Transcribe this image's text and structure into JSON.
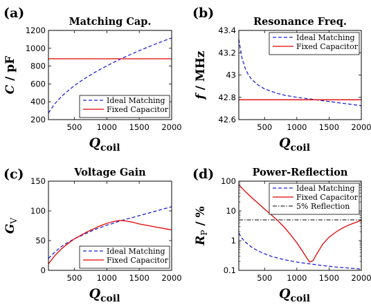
{
  "chart_data": [
    {
      "type": "line",
      "panel_label": "(a)",
      "title": "Matching Cap.",
      "xlabel_main": "Q",
      "xlabel_sub": "coil",
      "ylabel": "C / pF",
      "xlim": [
        100,
        2000
      ],
      "ylim": [
        200,
        1200
      ],
      "yscale": "linear",
      "xticks": [
        500,
        1000,
        1500,
        2000
      ],
      "yticks": [
        200,
        400,
        600,
        800,
        1000,
        1200
      ],
      "legend_position": "bottom-right",
      "series": [
        {
          "name": "Ideal Matching",
          "color": "#1f1fd8",
          "style": "dashed",
          "x": [
            100,
            200,
            300,
            400,
            500,
            600,
            700,
            800,
            900,
            1000,
            1100,
            1200,
            1300,
            1400,
            1500,
            1600,
            1700,
            1800,
            1900,
            2000
          ],
          "y": [
            275,
            380,
            458,
            523,
            581,
            632,
            679,
            723,
            764,
            803,
            840,
            875,
            909,
            941,
            973,
            1003,
            1032,
            1061,
            1089,
            1116
          ]
        },
        {
          "name": "Fixed Capacitor",
          "color": "#e00000",
          "style": "solid",
          "x": [
            100,
            2000
          ],
          "y": [
            882,
            882
          ]
        }
      ]
    },
    {
      "type": "line",
      "panel_label": "(b)",
      "title": "Resonance Freq.",
      "xlabel_main": "Q",
      "xlabel_sub": "coil",
      "ylabel": "f / MHz",
      "xlim": [
        100,
        2000
      ],
      "ylim": [
        42.6,
        43.4
      ],
      "yscale": "linear",
      "xticks": [
        500,
        1000,
        1500,
        2000
      ],
      "yticks": [
        42.6,
        42.8,
        43,
        43.2,
        43.4
      ],
      "legend_position": "top-right",
      "series": [
        {
          "name": "Ideal Matching",
          "color": "#1f1fd8",
          "style": "dashed",
          "x": [
            100,
            150,
            200,
            250,
            300,
            400,
            500,
            600,
            700,
            800,
            900,
            1000,
            1200,
            1400,
            1600,
            1800,
            2000
          ],
          "y": [
            43.32,
            43.15,
            43.06,
            43.0,
            42.96,
            42.91,
            42.875,
            42.855,
            42.835,
            42.82,
            42.81,
            42.8,
            42.785,
            42.77,
            42.755,
            42.74,
            42.725
          ]
        },
        {
          "name": "Fixed Capacitor",
          "color": "#e00000",
          "style": "solid",
          "x": [
            100,
            2000
          ],
          "y": [
            42.778,
            42.778
          ]
        }
      ]
    },
    {
      "type": "line",
      "panel_label": "(c)",
      "title": "Voltage Gain",
      "xlabel_main": "Q",
      "xlabel_sub": "coil",
      "ylabel": "G",
      "ylabel_sub": "V",
      "xlim": [
        100,
        2000
      ],
      "ylim": [
        0,
        150
      ],
      "yscale": "linear",
      "xticks": [
        500,
        1000,
        1500,
        2000
      ],
      "yticks": [
        0,
        50,
        100,
        150
      ],
      "legend_position": "bottom-right",
      "series": [
        {
          "name": "Ideal Matching",
          "color": "#1f1fd8",
          "style": "dashed",
          "x": [
            100,
            200,
            300,
            400,
            500,
            600,
            700,
            800,
            900,
            1000,
            1100,
            1200,
            1300,
            1400,
            1500,
            1600,
            1700,
            1800,
            1900,
            2000
          ],
          "y": [
            20,
            31,
            40,
            47,
            53,
            58,
            63,
            68,
            72,
            76,
            79,
            83,
            86,
            89,
            92,
            95,
            98,
            101,
            104,
            107
          ]
        },
        {
          "name": "Fixed Capacitor",
          "color": "#e00000",
          "style": "solid",
          "x": [
            100,
            200,
            300,
            400,
            500,
            600,
            700,
            800,
            900,
            1000,
            1100,
            1200,
            1300,
            1400,
            1500,
            1600,
            1700,
            1800,
            1900,
            2000
          ],
          "y": [
            11,
            25,
            36,
            45,
            53,
            59,
            65,
            70,
            75,
            79,
            82,
            84,
            83,
            81,
            78,
            76,
            74,
            72,
            70,
            68
          ]
        }
      ]
    },
    {
      "type": "line",
      "panel_label": "(d)",
      "title": "Power-Reflection",
      "xlabel_main": "Q",
      "xlabel_sub": "coil",
      "ylabel": "R",
      "ylabel_sub": "P",
      "ylabel_unit": "/ %",
      "xlim": [
        100,
        2000
      ],
      "ylim": [
        0.1,
        100
      ],
      "yscale": "log",
      "xticks": [
        500,
        1000,
        1500,
        2000
      ],
      "yticks": [
        0.1,
        1,
        10,
        100
      ],
      "legend_position": "top-right",
      "series": [
        {
          "name": "Ideal Matching",
          "color": "#1f1fd8",
          "style": "dashed",
          "x": [
            100,
            150,
            200,
            300,
            400,
            500,
            600,
            700,
            800,
            1000,
            1200,
            1400,
            1600,
            1800,
            2000
          ],
          "y": [
            1.8,
            1.2,
            0.9,
            0.6,
            0.45,
            0.36,
            0.3,
            0.26,
            0.23,
            0.19,
            0.165,
            0.145,
            0.13,
            0.12,
            0.11
          ]
        },
        {
          "name": "Fixed Capacitor",
          "color": "#e00000",
          "style": "solid",
          "x": [
            100,
            200,
            300,
            400,
            500,
            600,
            700,
            800,
            900,
            1000,
            1100,
            1150,
            1200,
            1250,
            1300,
            1400,
            1500,
            1600,
            1700,
            1800,
            1900,
            2000
          ],
          "y": [
            75,
            45,
            28,
            18,
            11.5,
            7.5,
            4.8,
            2.9,
            1.6,
            0.85,
            0.4,
            0.27,
            0.19,
            0.21,
            0.33,
            0.75,
            1.3,
            1.9,
            2.6,
            3.3,
            4.0,
            4.8
          ]
        },
        {
          "name": "5% Reflection",
          "color": "#000000",
          "style": "dashdot",
          "x": [
            100,
            2000
          ],
          "y": [
            5,
            5
          ]
        }
      ]
    }
  ]
}
